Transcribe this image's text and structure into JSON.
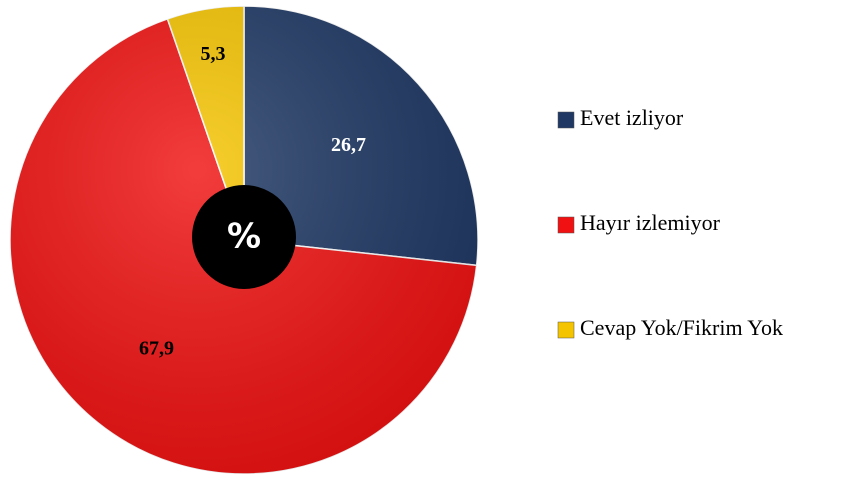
{
  "chart_data": {
    "type": "pie",
    "categories": [
      "Evet izliyor",
      "Hayır izlemiyor",
      "Cevap Yok/Fikrim Yok"
    ],
    "values": [
      26.7,
      67.9,
      5.3
    ],
    "value_labels": [
      "26,7",
      "67,9",
      "5,3"
    ],
    "colors": [
      "#1f3864",
      "#f01212",
      "#f5c400"
    ],
    "center_label": "%",
    "legend": "right"
  }
}
